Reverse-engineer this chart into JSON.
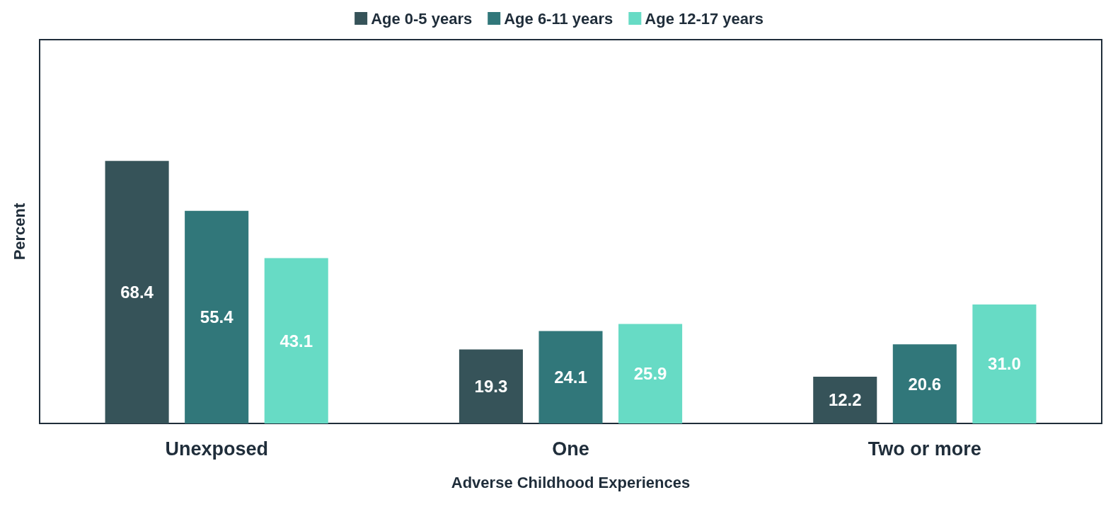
{
  "chart_data": {
    "type": "bar",
    "xlabel": "Adverse Childhood Experiences",
    "ylabel": "Percent",
    "categories": [
      "Unexposed",
      "One",
      "Two or more"
    ],
    "ylim": [
      0,
      100
    ],
    "tick_labels": "x",
    "legend": "top",
    "grid": false,
    "series": [
      {
        "name": "Age 0-5 years",
        "color": "#365359",
        "values": [
          68.4,
          19.3,
          12.2
        ],
        "value_labels": [
          "68.4",
          "19.3",
          "12.2"
        ]
      },
      {
        "name": "Age 6-11 years",
        "color": "#31777a",
        "values": [
          55.4,
          24.1,
          20.6
        ],
        "value_labels": [
          "55.4",
          "24.1",
          "20.6"
        ]
      },
      {
        "name": "Age 12-17 years",
        "color": "#67dbc5",
        "values": [
          43.1,
          25.9,
          31.0
        ],
        "value_labels": [
          "43.1",
          "25.9",
          "31.0"
        ]
      }
    ]
  }
}
